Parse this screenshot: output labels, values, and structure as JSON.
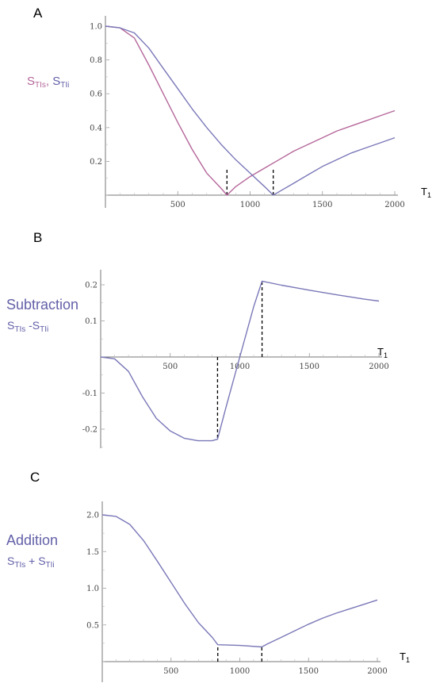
{
  "colors": {
    "tis": "#b5679a",
    "tii": "#7a78b8",
    "label_purple": "#6360a8",
    "label_magenta": "#b5679a"
  },
  "chart_data": [
    {
      "panel": "A",
      "type": "line",
      "side_label": {
        "s": "S",
        "tis": "TIs",
        "sep": ", ",
        "tii": "TIi"
      },
      "xlabel": {
        "main": "T",
        "sub": "1"
      },
      "xlim": [
        0,
        2000
      ],
      "ylim": [
        0,
        1.05
      ],
      "xticks": [
        500,
        1000,
        1500,
        2000
      ],
      "yticks": [
        "0.2",
        "0.4",
        "0.6",
        "0.8",
        "1.0"
      ],
      "dashed_lines": [
        840,
        1160
      ],
      "series": [
        {
          "key": "tis",
          "x": [
            0,
            100,
            200,
            300,
            400,
            500,
            600,
            700,
            800,
            840,
            900,
            1000,
            1100,
            1200,
            1300,
            1400,
            1500,
            1600,
            1700,
            1800,
            1900,
            2000
          ],
          "y": [
            1.0,
            0.99,
            0.93,
            0.77,
            0.6,
            0.43,
            0.27,
            0.13,
            0.04,
            0.0,
            0.05,
            0.11,
            0.16,
            0.21,
            0.26,
            0.3,
            0.34,
            0.38,
            0.41,
            0.44,
            0.47,
            0.5
          ]
        },
        {
          "key": "tii",
          "x": [
            0,
            100,
            200,
            300,
            400,
            500,
            600,
            700,
            800,
            900,
            1000,
            1100,
            1160,
            1200,
            1300,
            1400,
            1500,
            1600,
            1700,
            1800,
            1900,
            2000
          ],
          "y": [
            1.0,
            0.99,
            0.96,
            0.87,
            0.75,
            0.63,
            0.51,
            0.4,
            0.3,
            0.21,
            0.13,
            0.05,
            0.0,
            0.02,
            0.07,
            0.12,
            0.17,
            0.21,
            0.25,
            0.28,
            0.31,
            0.34
          ]
        }
      ]
    },
    {
      "panel": "B",
      "type": "line",
      "side_label": {
        "title": "Subtraction",
        "s1": "S",
        "sub1": "TIs",
        "op": " -S",
        "sub2": "TIi"
      },
      "xlabel": {
        "main": "T",
        "sub": "1"
      },
      "xlim": [
        0,
        2000
      ],
      "ylim": [
        -0.25,
        0.23
      ],
      "xticks": [
        500,
        1000,
        1500,
        2000
      ],
      "yticks": [
        "-0.2",
        "-0.1",
        "0.1",
        "0.2"
      ],
      "dashed_lines": [
        840,
        1160
      ],
      "series": [
        {
          "key": "tii",
          "x": [
            0,
            100,
            200,
            300,
            400,
            500,
            600,
            700,
            800,
            840,
            900,
            1000,
            1100,
            1160,
            1300,
            1500,
            1700,
            1900,
            2000
          ],
          "y": [
            0.0,
            -0.005,
            -0.04,
            -0.11,
            -0.17,
            -0.205,
            -0.225,
            -0.232,
            -0.232,
            -0.228,
            -0.14,
            0.0,
            0.14,
            0.21,
            0.199,
            0.185,
            0.172,
            0.16,
            0.155
          ]
        }
      ]
    },
    {
      "panel": "C",
      "type": "line",
      "side_label": {
        "title": "Addition",
        "s1": "S",
        "sub1": "TIs",
        "op": " + S",
        "sub2": "TIi"
      },
      "xlabel": {
        "main": "T",
        "sub": "1"
      },
      "xlim": [
        0,
        2000
      ],
      "ylim": [
        0,
        2.1
      ],
      "xticks": [
        500,
        1000,
        1500,
        2000
      ],
      "yticks": [
        "0.5",
        "1.0",
        "1.5",
        "2.0"
      ],
      "dashed_lines": [
        840,
        1160
      ],
      "series": [
        {
          "key": "tii",
          "x": [
            0,
            100,
            200,
            300,
            400,
            500,
            600,
            700,
            800,
            840,
            1000,
            1160,
            1200,
            1300,
            1400,
            1500,
            1600,
            1700,
            1800,
            1900,
            2000
          ],
          "y": [
            2.0,
            1.98,
            1.87,
            1.65,
            1.37,
            1.08,
            0.79,
            0.53,
            0.33,
            0.23,
            0.22,
            0.2,
            0.24,
            0.33,
            0.42,
            0.51,
            0.59,
            0.66,
            0.72,
            0.78,
            0.84
          ]
        }
      ]
    }
  ]
}
